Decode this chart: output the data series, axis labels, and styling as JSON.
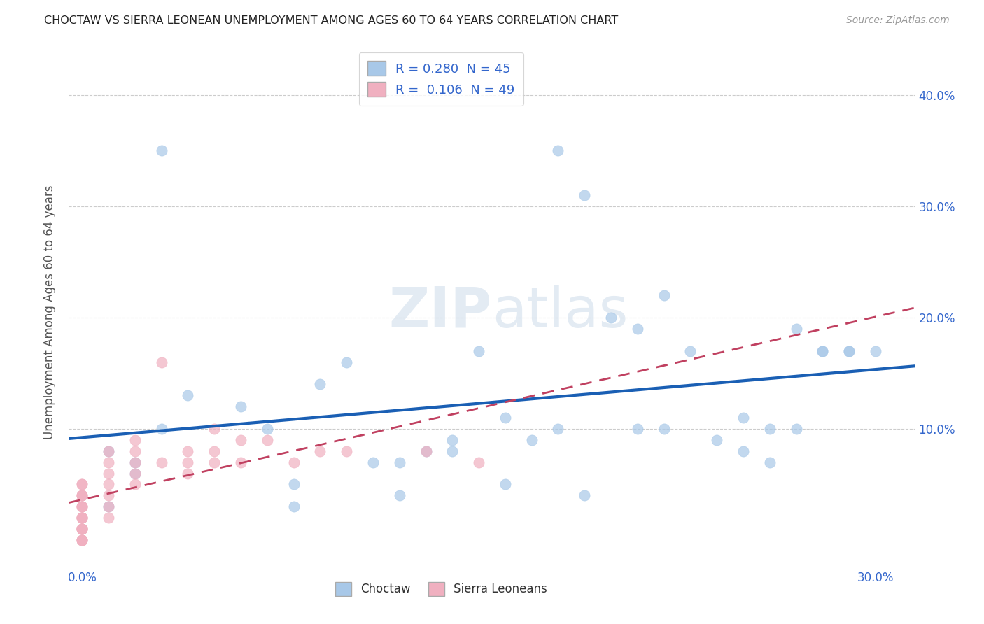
{
  "title": "CHOCTAW VS SIERRA LEONEAN UNEMPLOYMENT AMONG AGES 60 TO 64 YEARS CORRELATION CHART",
  "source": "Source: ZipAtlas.com",
  "ylabel": "Unemployment Among Ages 60 to 64 years",
  "xlabel": "",
  "legend_choctaw": "Choctaw",
  "legend_sierra": "Sierra Leoneans",
  "r_choctaw": "0.280",
  "n_choctaw": 45,
  "r_sierra": "0.106",
  "n_sierra": 49,
  "xlim": [
    -0.005,
    0.315
  ],
  "ylim": [
    -0.025,
    0.435
  ],
  "xticks": [
    0.0,
    0.05,
    0.1,
    0.15,
    0.2,
    0.25,
    0.3
  ],
  "xticklabels": [
    "0.0%",
    "",
    "",
    "",
    "",
    "",
    "30.0%"
  ],
  "yticks": [
    0.0,
    0.1,
    0.2,
    0.3,
    0.4
  ],
  "yticklabels": [
    "",
    "10.0%",
    "20.0%",
    "30.0%",
    "40.0%"
  ],
  "color_choctaw": "#a8c8e8",
  "color_sierra": "#f0b0c0",
  "line_color_choctaw": "#1a5fb4",
  "line_color_sierra": "#c04060",
  "bg_color": "#ffffff",
  "grid_color": "#cccccc",
  "choctaw_x": [
    0.03,
    0.18,
    0.01,
    0.02,
    0.02,
    0.03,
    0.04,
    0.01,
    0.06,
    0.09,
    0.12,
    0.14,
    0.15,
    0.16,
    0.14,
    0.18,
    0.19,
    0.22,
    0.21,
    0.23,
    0.26,
    0.24,
    0.25,
    0.27,
    0.28,
    0.29,
    0.26,
    0.3,
    0.29,
    0.1,
    0.11,
    0.08,
    0.07,
    0.2,
    0.17,
    0.13,
    0.12,
    0.22,
    0.25,
    0.27,
    0.19,
    0.16,
    0.08,
    0.21,
    0.28
  ],
  "choctaw_y": [
    0.35,
    0.35,
    0.08,
    0.07,
    0.06,
    0.1,
    0.13,
    0.03,
    0.12,
    0.14,
    0.07,
    0.08,
    0.17,
    0.11,
    0.09,
    0.1,
    0.31,
    0.22,
    0.1,
    0.17,
    0.1,
    0.09,
    0.08,
    0.1,
    0.17,
    0.17,
    0.07,
    0.17,
    0.17,
    0.16,
    0.07,
    0.03,
    0.1,
    0.2,
    0.09,
    0.08,
    0.04,
    0.1,
    0.11,
    0.19,
    0.04,
    0.05,
    0.05,
    0.19,
    0.17
  ],
  "sierra_x": [
    0.0,
    0.0,
    0.0,
    0.0,
    0.0,
    0.0,
    0.0,
    0.0,
    0.0,
    0.0,
    0.0,
    0.0,
    0.0,
    0.0,
    0.0,
    0.0,
    0.0,
    0.0,
    0.0,
    0.0,
    0.0,
    0.01,
    0.01,
    0.01,
    0.01,
    0.01,
    0.01,
    0.01,
    0.02,
    0.02,
    0.02,
    0.02,
    0.02,
    0.03,
    0.03,
    0.04,
    0.04,
    0.04,
    0.05,
    0.05,
    0.05,
    0.06,
    0.06,
    0.07,
    0.08,
    0.09,
    0.1,
    0.13,
    0.15
  ],
  "sierra_y": [
    0.05,
    0.05,
    0.04,
    0.04,
    0.04,
    0.03,
    0.03,
    0.03,
    0.02,
    0.02,
    0.02,
    0.02,
    0.01,
    0.01,
    0.01,
    0.01,
    0.01,
    0.0,
    0.0,
    0.0,
    0.0,
    0.08,
    0.07,
    0.06,
    0.05,
    0.04,
    0.03,
    0.02,
    0.09,
    0.08,
    0.07,
    0.06,
    0.05,
    0.16,
    0.07,
    0.08,
    0.07,
    0.06,
    0.1,
    0.08,
    0.07,
    0.09,
    0.07,
    0.09,
    0.07,
    0.08,
    0.08,
    0.08,
    0.07
  ]
}
